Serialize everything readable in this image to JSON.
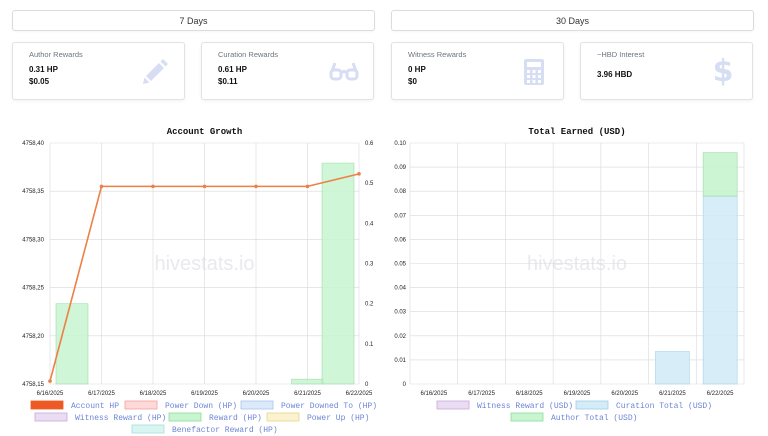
{
  "tabs": [
    {
      "label": "7 Days"
    },
    {
      "label": "30 Days"
    }
  ],
  "cards": [
    {
      "title": "Author Rewards",
      "line1": "0.31 HP",
      "line2": "$0.05",
      "icon": "pencil-icon"
    },
    {
      "title": "Curation Rewards",
      "line1": "0.61 HP",
      "line2": "$0.11",
      "icon": "glasses-icon"
    },
    {
      "title": "Witness Rewards",
      "line1": "0 HP",
      "line2": "$0",
      "icon": "calculator-icon"
    },
    {
      "title": "~HBD Interest",
      "line1": "3.96 HBD",
      "line2": "",
      "icon": "dollar-icon"
    }
  ],
  "watermark": "hivestats.io",
  "colors": {
    "accent_line": "#ee7f45",
    "bar_green": "#c7f5cf",
    "bar_blue": "#d3ecf8",
    "legend_text": "#6e86d6",
    "icon": "#d7ddf2"
  },
  "chart_data": [
    {
      "type": "bar",
      "title": "Account Growth",
      "categories": [
        "6/16/2025",
        "6/17/2025",
        "6/18/2025",
        "6/19/2025",
        "6/20/2025",
        "6/21/2025",
        "6/22/2025"
      ],
      "y_left": {
        "min": 4758.15,
        "max": 4758.4,
        "ticks": [
          "4758,15",
          "4758,20",
          "4758,25",
          "4758,30",
          "4758,35",
          "4758,40"
        ]
      },
      "y_right": {
        "min": 0,
        "max": 0.6,
        "ticks": [
          "0",
          "0.1",
          "0.2",
          "0.3",
          "0.4",
          "0.5",
          "0.6"
        ]
      },
      "series": [
        {
          "name": "Account HP",
          "kind": "line",
          "axis": "left",
          "color": "#ee7f45",
          "values": [
            4758.153,
            4758.355,
            4758.355,
            4758.355,
            4758.355,
            4758.355,
            4758.368
          ]
        },
        {
          "name": "Reward (HP)",
          "kind": "bar",
          "axis": "right",
          "color": "#c7f5cf",
          "values": [
            0.2,
            0,
            0,
            0,
            0,
            0.012,
            0.55
          ]
        }
      ],
      "legend": [
        {
          "label": "Account HP",
          "fill": "#ee5a24",
          "stroke": "#ee5a24"
        },
        {
          "label": "Power Down (HP)",
          "fill": "#ffd8d8",
          "stroke": "#f0a0a0"
        },
        {
          "label": "Power Downed To (HP)",
          "fill": "#dce9fb",
          "stroke": "#a9c4ee"
        },
        {
          "label": "Witness Reward (HP)",
          "fill": "#eadcf3",
          "stroke": "#c9a9dd"
        },
        {
          "label": "Reward (HP)",
          "fill": "#c7f5cf",
          "stroke": "#8fd89d"
        },
        {
          "label": "Power Up (HP)",
          "fill": "#fbf3cf",
          "stroke": "#e6d58a"
        },
        {
          "label": "Benefactor Reward (HP)",
          "fill": "#d9f5f2",
          "stroke": "#a5e0d8"
        }
      ],
      "grid": true,
      "legend_placement": "bottom"
    },
    {
      "type": "bar",
      "title": "Total Earned (USD)",
      "categories": [
        "6/16/2025",
        "6/17/2025",
        "6/18/2025",
        "6/19/2025",
        "6/20/2025",
        "6/21/2025",
        "6/22/2025"
      ],
      "y": {
        "min": 0,
        "max": 0.1,
        "ticks": [
          "0",
          "0.01",
          "0.02",
          "0.03",
          "0.04",
          "0.05",
          "0.06",
          "0.07",
          "0.08",
          "0.09",
          "0.10"
        ]
      },
      "stacked": true,
      "series": [
        {
          "name": "Curation Total (USD)",
          "color": "#d3ecf8",
          "values": [
            0,
            0,
            0,
            0,
            0,
            0.0135,
            0.078
          ]
        },
        {
          "name": "Author Total (USD)",
          "color": "#c7f5cf",
          "values": [
            0,
            0,
            0,
            0,
            0,
            0,
            0.018
          ]
        }
      ],
      "legend": [
        {
          "label": "Witness Reward (USD)",
          "fill": "#eadcf3",
          "stroke": "#c9a9dd"
        },
        {
          "label": "Curation Total (USD)",
          "fill": "#d3ecf8",
          "stroke": "#9fd0ea"
        },
        {
          "label": "Author Total (USD)",
          "fill": "#c7f5cf",
          "stroke": "#8fd89d"
        }
      ],
      "grid": true,
      "legend_placement": "bottom"
    }
  ]
}
